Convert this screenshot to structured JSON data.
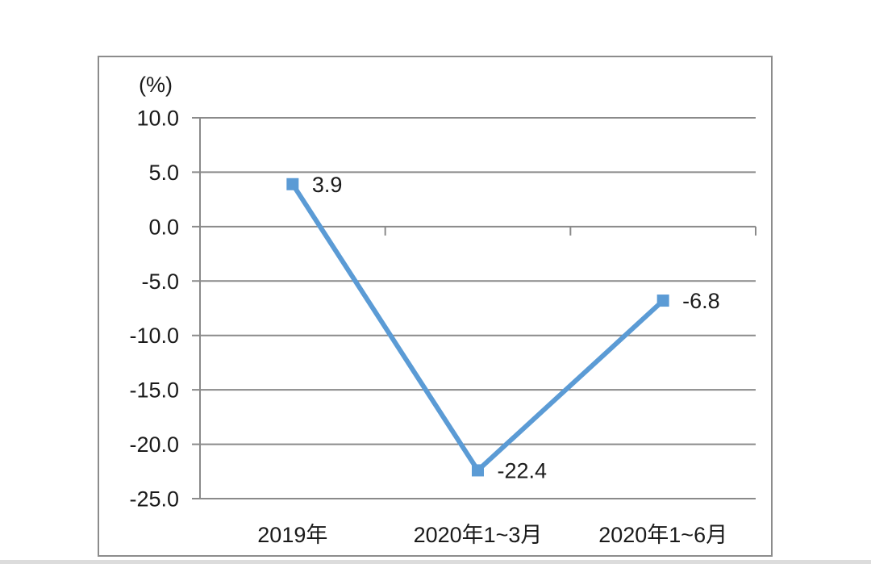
{
  "chart_data": {
    "type": "line",
    "unit_label": "(%)",
    "categories": [
      "2019年",
      "2020年1~3月",
      "2020年1~6月"
    ],
    "values": [
      3.9,
      -22.4,
      -6.8
    ],
    "data_labels": [
      "3.9",
      "-22.4",
      "-6.8"
    ],
    "yticks": [
      10.0,
      5.0,
      0.0,
      -5.0,
      -10.0,
      -15.0,
      -20.0,
      -25.0
    ],
    "ytick_labels": [
      "10.0",
      "5.0",
      "0.0",
      "-5.0",
      "-10.0",
      "-15.0",
      "-20.0",
      "-25.0"
    ],
    "ylim": [
      -25,
      10
    ],
    "grid": true,
    "legend": "none",
    "marker_shape": "square",
    "colors": {
      "line": "#5B9BD5",
      "marker": "#5B9BD5",
      "gridline": "#8A8A8A",
      "axis": "#8A8A8A",
      "frame_border": "#8C8C8C",
      "text": "#1A1A1A",
      "background": "#FFFFFF"
    }
  }
}
